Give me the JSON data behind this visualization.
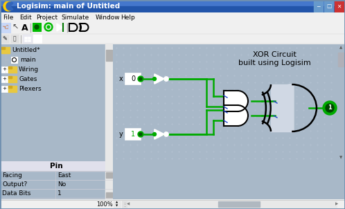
{
  "title_bar": "Logisim: main of Untitled",
  "menu_items": [
    "File",
    "Edit",
    "Project",
    "Simulate",
    "Window",
    "Help"
  ],
  "tree_folder_color": "#e8c840",
  "tree_items": [
    "Untitled*",
    "main",
    "Wiring",
    "Gates",
    "Plexers"
  ],
  "prop_title": "Pin",
  "prop_rows": [
    [
      "Facing",
      "East"
    ],
    [
      "Output?",
      "No"
    ],
    [
      "Data Bits",
      "1"
    ]
  ],
  "zoom_text": "100%",
  "wire_color": "#00aa00",
  "gate_color": "#000000",
  "canvas_bg": "#d0d8e4",
  "xor_label_line1": "XOR Circuit",
  "xor_label_line2": "built using Logisim",
  "title_bg_top": "#5588cc",
  "title_bg_bot": "#2255aa",
  "window_border": "#7090b0",
  "sidebar_bg": "#ffffff",
  "menu_bg": "#f0f0f0",
  "toolbar_bg": "#f0f0f0",
  "prop_bg": "#eeeef4",
  "status_bg": "#f0f0f0"
}
